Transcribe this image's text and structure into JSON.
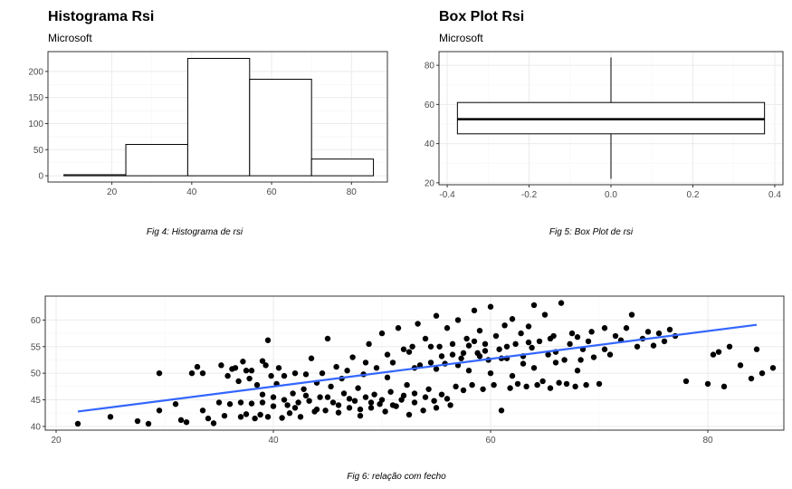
{
  "chart_data": [
    {
      "type": "bar",
      "chart_kind": "histogram",
      "title": "Histograma Rsi",
      "subtitle": "Microsoft",
      "caption": "Fig 4: Histograma de rsi",
      "bins": [
        {
          "x0": 8,
          "x1": 23.5,
          "count": 2
        },
        {
          "x0": 23.5,
          "x1": 39,
          "count": 60
        },
        {
          "x0": 39,
          "x1": 54.5,
          "count": 225
        },
        {
          "x0": 54.5,
          "x1": 70,
          "count": 185
        },
        {
          "x0": 70,
          "x1": 85.5,
          "count": 32
        }
      ],
      "xlim": [
        4,
        89
      ],
      "ylim": [
        -12,
        238
      ],
      "xticks": [
        20,
        40,
        60,
        80
      ],
      "yticks": [
        0,
        50,
        100,
        150,
        200
      ],
      "bar_fill": "#ffffff",
      "bar_stroke": "#000000",
      "grid": true
    },
    {
      "type": "box",
      "title": "Box Plot Rsi",
      "subtitle": "Microsoft",
      "caption": "Fig 5: Box Plot de rsi",
      "box": {
        "min": 22,
        "q1": 45,
        "median": 52.5,
        "q3": 61,
        "max": 84,
        "x0": -0.375,
        "x1": 0.375
      },
      "xlim": [
        -0.42,
        0.42
      ],
      "ylim": [
        19,
        87
      ],
      "xticks": [
        -0.4,
        -0.2,
        0.0,
        0.2,
        0.4
      ],
      "xtick_labels": [
        "-0.4",
        "-0.2",
        "0.0",
        "0.2",
        "0.4"
      ],
      "yticks": [
        20,
        40,
        60,
        80
      ],
      "grid": true
    },
    {
      "type": "scatter",
      "caption": "Fig 6: relação com fecho",
      "xlim": [
        19,
        87
      ],
      "ylim": [
        39.3,
        64.5
      ],
      "xticks": [
        20,
        40,
        60,
        80
      ],
      "yticks": [
        40,
        45,
        50,
        55,
        60
      ],
      "point_color": "#000000",
      "trend_color": "#3366ff",
      "trend": {
        "x": [
          22,
          84.5
        ],
        "y": [
          42.8,
          59.1
        ]
      },
      "points": [
        [
          22.0,
          40.5
        ],
        [
          25.0,
          41.8
        ],
        [
          27.5,
          41.0
        ],
        [
          28.5,
          40.5
        ],
        [
          29.5,
          50.0
        ],
        [
          29.5,
          43.0
        ],
        [
          31.0,
          44.2
        ],
        [
          31.5,
          41.2
        ],
        [
          32.0,
          40.8
        ],
        [
          32.5,
          50.0
        ],
        [
          33.0,
          51.2
        ],
        [
          33.5,
          43.0
        ],
        [
          33.5,
          50.0
        ],
        [
          34.0,
          41.5
        ],
        [
          34.5,
          40.6
        ],
        [
          35.0,
          44.5
        ],
        [
          35.2,
          51.5
        ],
        [
          35.5,
          42.0
        ],
        [
          35.8,
          49.5
        ],
        [
          36.0,
          44.2
        ],
        [
          36.2,
          50.8
        ],
        [
          36.5,
          51.0
        ],
        [
          36.8,
          48.5
        ],
        [
          37.0,
          41.8
        ],
        [
          37.0,
          44.5
        ],
        [
          37.2,
          52.2
        ],
        [
          37.5,
          50.5
        ],
        [
          37.5,
          42.3
        ],
        [
          37.8,
          49.0
        ],
        [
          38.0,
          50.5
        ],
        [
          38.0,
          44.3
        ],
        [
          38.3,
          41.5
        ],
        [
          38.5,
          47.8
        ],
        [
          38.8,
          42.2
        ],
        [
          39.0,
          52.3
        ],
        [
          39.0,
          44.5
        ],
        [
          39.3,
          51.5
        ],
        [
          39.5,
          56.2
        ],
        [
          39.5,
          41.8
        ],
        [
          39.8,
          49.5
        ],
        [
          40.0,
          43.8
        ],
        [
          40.3,
          48.0
        ],
        [
          40.5,
          51.0
        ],
        [
          40.8,
          41.6
        ],
        [
          41.0,
          49.5
        ],
        [
          41.3,
          44.0
        ],
        [
          41.5,
          42.5
        ],
        [
          41.8,
          46.2
        ],
        [
          42.0,
          50.0
        ],
        [
          42.3,
          44.5
        ],
        [
          42.5,
          41.8
        ],
        [
          42.8,
          47.0
        ],
        [
          43.0,
          49.8
        ],
        [
          43.3,
          44.8
        ],
        [
          43.5,
          52.8
        ],
        [
          43.8,
          42.8
        ],
        [
          44.0,
          48.2
        ],
        [
          44.3,
          45.5
        ],
        [
          44.5,
          50.0
        ],
        [
          44.8,
          43.0
        ],
        [
          45.0,
          56.5
        ],
        [
          45.3,
          47.5
        ],
        [
          45.5,
          44.5
        ],
        [
          45.8,
          51.2
        ],
        [
          46.0,
          42.6
        ],
        [
          46.3,
          49.0
        ],
        [
          46.5,
          46.2
        ],
        [
          46.8,
          50.5
        ],
        [
          47.0,
          43.5
        ],
        [
          47.3,
          53.0
        ],
        [
          47.5,
          44.8
        ],
        [
          47.8,
          47.2
        ],
        [
          48.0,
          42.0
        ],
        [
          48.3,
          49.8
        ],
        [
          48.5,
          45.5
        ],
        [
          48.8,
          55.5
        ],
        [
          49.0,
          43.5
        ],
        [
          49.3,
          46.0
        ],
        [
          49.5,
          51.0
        ],
        [
          49.8,
          44.2
        ],
        [
          50.0,
          57.5
        ],
        [
          50.3,
          42.8
        ],
        [
          50.5,
          49.2
        ],
        [
          50.8,
          46.5
        ],
        [
          51.0,
          52.0
        ],
        [
          51.3,
          43.8
        ],
        [
          51.5,
          58.5
        ],
        [
          51.8,
          45.0
        ],
        [
          52.0,
          54.5
        ],
        [
          52.3,
          47.8
        ],
        [
          52.5,
          42.2
        ],
        [
          52.8,
          55.0
        ],
        [
          53.0,
          46.2
        ],
        [
          53.3,
          59.3
        ],
        [
          53.5,
          51.5
        ],
        [
          53.8,
          43.0
        ],
        [
          54.0,
          56.5
        ],
        [
          54.3,
          47.0
        ],
        [
          54.5,
          52.0
        ],
        [
          54.8,
          44.8
        ],
        [
          55.0,
          60.8
        ],
        [
          55.3,
          55.0
        ],
        [
          55.5,
          46.0
        ],
        [
          55.8,
          51.8
        ],
        [
          56.0,
          58.5
        ],
        [
          56.3,
          44.0
        ],
        [
          56.5,
          53.5
        ],
        [
          56.8,
          47.5
        ],
        [
          57.0,
          60.0
        ],
        [
          57.3,
          52.8
        ],
        [
          57.5,
          46.8
        ],
        [
          57.8,
          56.5
        ],
        [
          58.0,
          55.2
        ],
        [
          58.3,
          47.8
        ],
        [
          58.5,
          61.8
        ],
        [
          58.8,
          53.8
        ],
        [
          59.0,
          58.0
        ],
        [
          59.3,
          47.0
        ],
        [
          59.5,
          55.5
        ],
        [
          59.8,
          52.5
        ],
        [
          60.0,
          62.5
        ],
        [
          60.3,
          47.8
        ],
        [
          60.5,
          57.0
        ],
        [
          60.8,
          54.5
        ],
        [
          61.0,
          43.0
        ],
        [
          61.3,
          59.0
        ],
        [
          61.5,
          52.8
        ],
        [
          61.8,
          47.2
        ],
        [
          62.0,
          60.2
        ],
        [
          62.3,
          55.5
        ],
        [
          62.5,
          48.0
        ],
        [
          62.8,
          57.5
        ],
        [
          63.0,
          53.2
        ],
        [
          63.3,
          47.5
        ],
        [
          63.5,
          58.8
        ],
        [
          63.8,
          54.8
        ],
        [
          64.0,
          62.8
        ],
        [
          64.3,
          47.8
        ],
        [
          64.5,
          56.0
        ],
        [
          64.8,
          48.5
        ],
        [
          65.0,
          61.0
        ],
        [
          65.3,
          53.5
        ],
        [
          65.5,
          47.2
        ],
        [
          65.8,
          57.0
        ],
        [
          66.0,
          54.0
        ],
        [
          66.3,
          48.2
        ],
        [
          66.5,
          63.2
        ],
        [
          66.8,
          52.5
        ],
        [
          67.0,
          48.0
        ],
        [
          67.3,
          55.5
        ],
        [
          67.5,
          57.5
        ],
        [
          67.8,
          47.5
        ],
        [
          68.0,
          56.8
        ],
        [
          68.3,
          52.5
        ],
        [
          68.5,
          54.5
        ],
        [
          68.8,
          47.8
        ],
        [
          69.0,
          56.0
        ],
        [
          69.3,
          57.8
        ],
        [
          69.5,
          53.0
        ],
        [
          70.0,
          48.0
        ],
        [
          70.5,
          54.5
        ],
        [
          71.0,
          53.5
        ],
        [
          71.5,
          57.0
        ],
        [
          72.0,
          56.2
        ],
        [
          72.5,
          58.5
        ],
        [
          73.0,
          61.0
        ],
        [
          73.5,
          55.0
        ],
        [
          74.0,
          56.5
        ],
        [
          74.5,
          57.8
        ],
        [
          75.0,
          55.2
        ],
        [
          75.5,
          57.5
        ],
        [
          76.0,
          56.0
        ],
        [
          76.5,
          58.2
        ],
        [
          77.0,
          57.0
        ],
        [
          78.0,
          48.5
        ],
        [
          80.0,
          48.0
        ],
        [
          80.5,
          53.5
        ],
        [
          81.0,
          54.0
        ],
        [
          81.5,
          47.5
        ],
        [
          82.0,
          55.0
        ],
        [
          83.0,
          51.5
        ],
        [
          84.0,
          49.0
        ],
        [
          84.5,
          54.5
        ],
        [
          85.0,
          50.0
        ],
        [
          86.0,
          51.0
        ],
        [
          70.5,
          58.5
        ],
        [
          53.0,
          51.0
        ],
        [
          55.0,
          50.8
        ],
        [
          57.0,
          51.5
        ],
        [
          59.0,
          53.2
        ],
        [
          61.0,
          52.8
        ],
        [
          63.0,
          51.8
        ],
        [
          45.0,
          45.5
        ],
        [
          46.0,
          44.0
        ],
        [
          47.0,
          45.2
        ],
        [
          48.0,
          43.2
        ],
        [
          49.0,
          44.5
        ],
        [
          50.0,
          45.0
        ],
        [
          51.0,
          44.0
        ],
        [
          52.0,
          45.8
        ],
        [
          53.0,
          44.5
        ],
        [
          54.0,
          45.5
        ],
        [
          55.0,
          43.5
        ],
        [
          56.0,
          45.2
        ],
        [
          43.0,
          45.8
        ],
        [
          44.0,
          43.2
        ],
        [
          42.0,
          43.5
        ],
        [
          41.0,
          45.0
        ],
        [
          40.0,
          45.5
        ],
        [
          39.0,
          46.0
        ],
        [
          58.0,
          50.5
        ],
        [
          60.0,
          50.0
        ],
        [
          62.0,
          49.5
        ],
        [
          64.0,
          51.0
        ],
        [
          66.0,
          52.0
        ],
        [
          68.0,
          50.5
        ],
        [
          55.5,
          53.2
        ],
        [
          57.5,
          53.8
        ],
        [
          59.5,
          54.2
        ],
        [
          61.5,
          55.0
        ],
        [
          63.5,
          55.8
        ],
        [
          65.5,
          56.5
        ],
        [
          48.5,
          52.0
        ],
        [
          50.5,
          53.5
        ],
        [
          52.5,
          54.0
        ],
        [
          54.5,
          55.0
        ],
        [
          56.5,
          55.5
        ],
        [
          58.5,
          56.0
        ]
      ]
    }
  ]
}
